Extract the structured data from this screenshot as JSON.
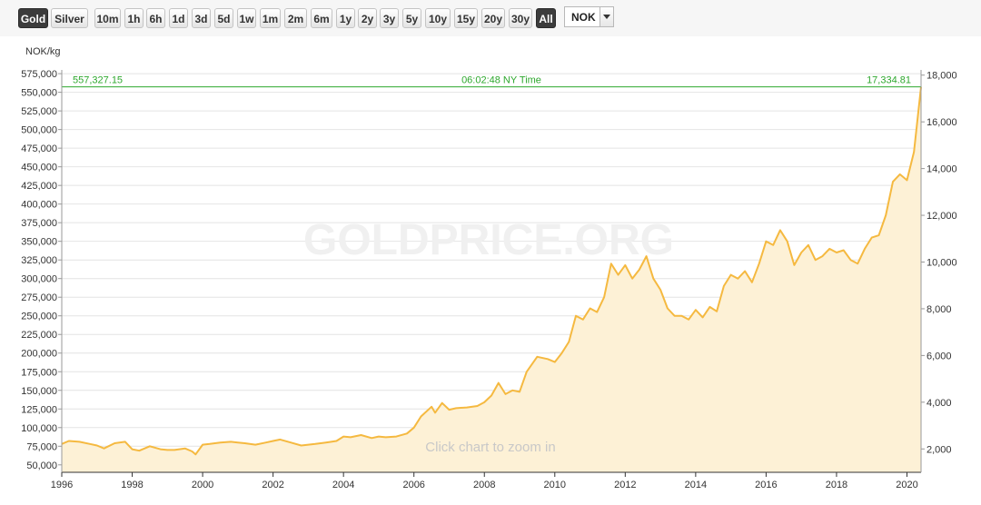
{
  "toolbar": {
    "buttons": [
      "Gold",
      "Silver",
      "10m",
      "1h",
      "6h",
      "1d",
      "3d",
      "5d",
      "1w",
      "1m",
      "2m",
      "6m",
      "1y",
      "2y",
      "3y",
      "5y",
      "10y",
      "15y",
      "20y",
      "30y",
      "All"
    ],
    "active": [
      "Gold",
      "All"
    ],
    "currency": "NOK"
  },
  "chart_data": {
    "type": "area",
    "ylabel": "NOK/kg",
    "watermark": "GOLDPRICE.ORG",
    "zoom_hint": "Click chart to zoom in",
    "current_price_left": "557,327.15",
    "current_price_right": "17,334.81",
    "timestamp": "06:02:48 NY Time",
    "xlim": [
      1996.0,
      2020.4
    ],
    "ylim": [
      40000,
      580000
    ],
    "y2lim": [
      1000,
      18222
    ],
    "xticks": [
      "1996",
      "1998",
      "2000",
      "2002",
      "2004",
      "2006",
      "2008",
      "2010",
      "2012",
      "2014",
      "2016",
      "2018",
      "2020"
    ],
    "yticks": [
      "50,000",
      "75,000",
      "100,000",
      "125,000",
      "150,000",
      "175,000",
      "200,000",
      "225,000",
      "250,000",
      "275,000",
      "300,000",
      "325,000",
      "350,000",
      "375,000",
      "400,000",
      "425,000",
      "450,000",
      "475,000",
      "500,000",
      "525,000",
      "550,000",
      "575,000"
    ],
    "y2ticks": [
      "2,000",
      "4,000",
      "6,000",
      "8,000",
      "10,000",
      "12,000",
      "14,000",
      "16,000",
      "18,000"
    ],
    "colors": {
      "line": "#f5b940",
      "fill": "#fdf1d6",
      "current": "#2ea82e",
      "grid": "#e4e4e4"
    },
    "series": [
      {
        "x": [
          1996.0,
          1996.2,
          1996.5,
          1996.8,
          1997.0,
          1997.2,
          1997.5,
          1997.8,
          1998.0,
          1998.2,
          1998.5,
          1998.8,
          1999.0,
          1999.2,
          1999.5,
          1999.7,
          1999.8,
          2000.0,
          2000.2,
          2000.5,
          2000.8,
          2001.0,
          2001.2,
          2001.5,
          2001.8,
          2002.0,
          2002.2,
          2002.5,
          2002.8,
          2003.0,
          2003.2,
          2003.5,
          2003.8,
          2004.0,
          2004.2,
          2004.5,
          2004.8,
          2005.0,
          2005.2,
          2005.5,
          2005.8,
          2006.0,
          2006.2,
          2006.5,
          2006.6,
          2006.8,
          2007.0,
          2007.2,
          2007.5,
          2007.8,
          2008.0,
          2008.2,
          2008.4,
          2008.6,
          2008.8,
          2009.0,
          2009.2,
          2009.5,
          2009.8,
          2010.0,
          2010.2,
          2010.4,
          2010.6,
          2010.8,
          2011.0,
          2011.2,
          2011.4,
          2011.6,
          2011.8,
          2012.0,
          2012.2,
          2012.4,
          2012.6,
          2012.8,
          2013.0,
          2013.2,
          2013.4,
          2013.6,
          2013.8,
          2014.0,
          2014.2,
          2014.4,
          2014.6,
          2014.8,
          2015.0,
          2015.2,
          2015.4,
          2015.6,
          2015.8,
          2016.0,
          2016.2,
          2016.4,
          2016.6,
          2016.8,
          2017.0,
          2017.2,
          2017.4,
          2017.6,
          2017.8,
          2018.0,
          2018.2,
          2018.4,
          2018.6,
          2018.8,
          2019.0,
          2019.2,
          2019.4,
          2019.6,
          2019.8,
          2020.0,
          2020.2,
          2020.4
        ],
        "values": [
          78000,
          82000,
          81000,
          78000,
          76000,
          72000,
          79000,
          81000,
          71000,
          69000,
          75000,
          71000,
          70000,
          70000,
          72000,
          68000,
          64000,
          77000,
          78000,
          80000,
          81000,
          80000,
          79000,
          77000,
          80000,
          82000,
          84000,
          80000,
          76000,
          77000,
          78000,
          80000,
          82000,
          88000,
          87000,
          90000,
          86000,
          88000,
          87000,
          88000,
          92000,
          100000,
          115000,
          128000,
          120000,
          133000,
          124000,
          126000,
          127000,
          129000,
          134000,
          143000,
          160000,
          145000,
          150000,
          148000,
          175000,
          195000,
          192000,
          188000,
          200000,
          215000,
          250000,
          245000,
          260000,
          255000,
          275000,
          320000,
          305000,
          318000,
          300000,
          312000,
          330000,
          300000,
          285000,
          260000,
          250000,
          250000,
          245000,
          258000,
          248000,
          262000,
          256000,
          290000,
          305000,
          300000,
          310000,
          295000,
          320000,
          350000,
          345000,
          365000,
          350000,
          318000,
          335000,
          345000,
          325000,
          330000,
          340000,
          335000,
          338000,
          325000,
          320000,
          340000,
          355000,
          358000,
          385000,
          430000,
          440000,
          432000,
          470000,
          557327
        ]
      }
    ]
  }
}
